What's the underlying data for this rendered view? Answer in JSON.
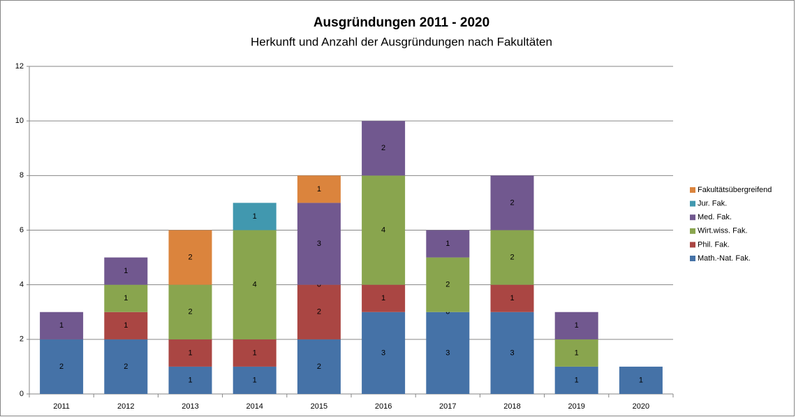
{
  "chart_data": {
    "type": "stacked_bar",
    "title": "Ausgründungen 2011 - 2020",
    "subtitle": "Herkunft und Anzahl der Ausgründungen nach Fakultäten",
    "categories": [
      "2011",
      "2012",
      "2013",
      "2014",
      "2015",
      "2016",
      "2017",
      "2018",
      "2019",
      "2020"
    ],
    "series": [
      {
        "name": "Math.-Nat. Fak.",
        "color": "#4572a7",
        "values": [
          2,
          2,
          1,
          1,
          2,
          3,
          3,
          3,
          1,
          1
        ]
      },
      {
        "name": "Phil. Fak.",
        "color": "#aa4643",
        "values": [
          null,
          1,
          1,
          1,
          2,
          1,
          0,
          1,
          null,
          null
        ]
      },
      {
        "name": "Wirt.wiss. Fak.",
        "color": "#89a54e",
        "values": [
          null,
          1,
          2,
          4,
          0,
          4,
          2,
          2,
          1,
          null
        ]
      },
      {
        "name": "Med. Fak.",
        "color": "#71588f",
        "values": [
          1,
          1,
          null,
          null,
          3,
          2,
          1,
          2,
          1,
          null
        ]
      },
      {
        "name": "Jur. Fak.",
        "color": "#4198af",
        "values": [
          null,
          null,
          null,
          1,
          null,
          null,
          null,
          null,
          null,
          null
        ]
      },
      {
        "name": "Fakultätsübergreifend",
        "color": "#db843d",
        "values": [
          null,
          null,
          2,
          null,
          1,
          null,
          null,
          null,
          null,
          null
        ]
      }
    ],
    "ylim": [
      0,
      12
    ],
    "yticks": [
      0,
      2,
      4,
      6,
      8,
      10,
      12
    ],
    "grid": true,
    "legend": "right"
  }
}
